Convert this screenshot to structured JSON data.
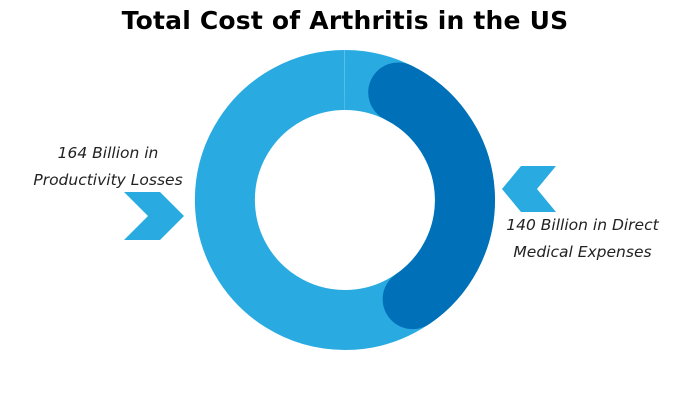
{
  "chart_data": {
    "type": "pie",
    "title": "Total Cost of Arthritis in the US",
    "unit": "Billion",
    "categories": [
      "Productivity Losses",
      "Direct Medical Expenses"
    ],
    "values": [
      164,
      140
    ],
    "labels": [
      {
        "line1": "164 Billion in",
        "line2": "Productivity Losses"
      },
      {
        "line1": "140 Billion in Direct",
        "line2": "Medical Expenses"
      }
    ],
    "colors": [
      "#29abe2",
      "#0070b8"
    ],
    "arrow_color": "#29abe2"
  }
}
